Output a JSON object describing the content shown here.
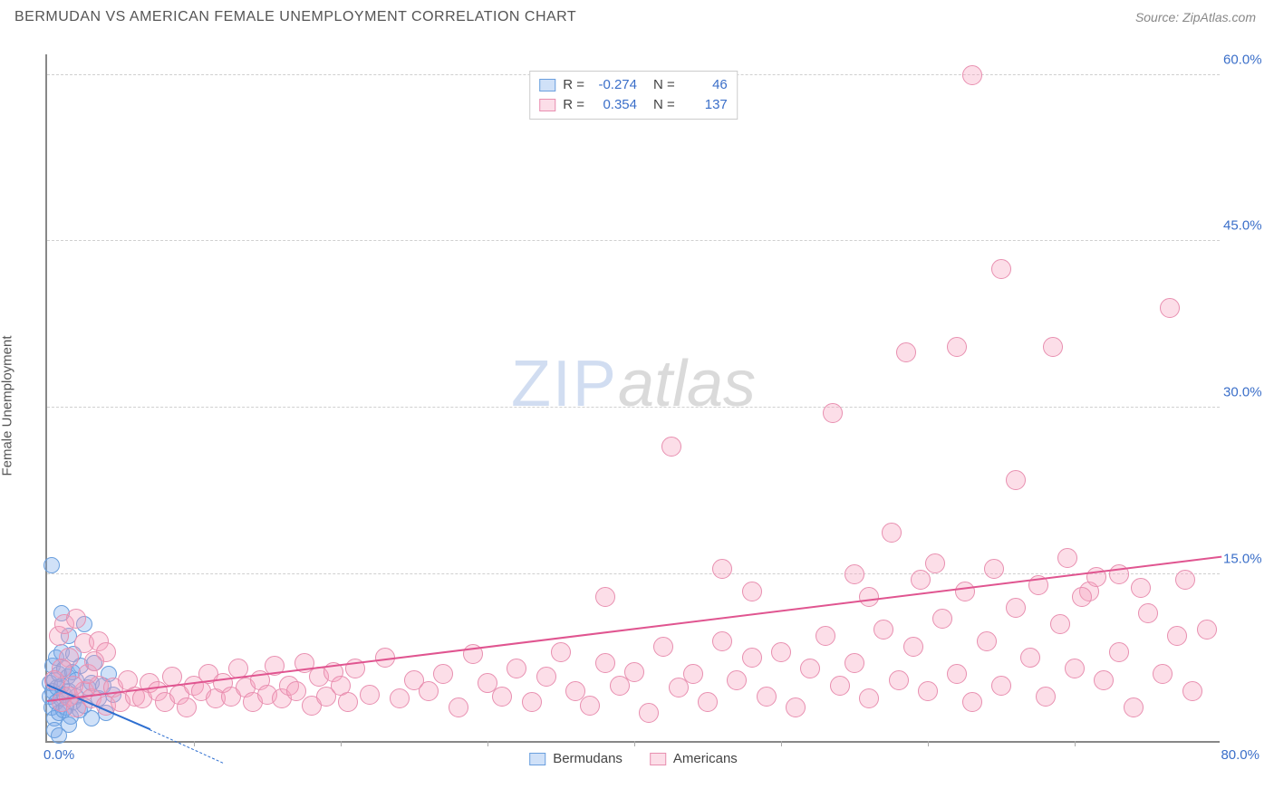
{
  "header": {
    "title": "BERMUDAN VS AMERICAN FEMALE UNEMPLOYMENT CORRELATION CHART",
    "source": "Source: ZipAtlas.com"
  },
  "chart": {
    "type": "scatter",
    "ylabel": "Female Unemployment",
    "watermark_a": "ZIP",
    "watermark_b": "atlas",
    "background_color": "#ffffff",
    "grid_color": "#d0d0d0",
    "axis_color": "#888888",
    "tick_color": "#3b6fc9",
    "xlim": [
      0,
      80
    ],
    "ylim": [
      0,
      62
    ],
    "yticks": [
      15,
      30,
      45,
      60
    ],
    "ytick_labels": [
      "15.0%",
      "30.0%",
      "45.0%",
      "60.0%"
    ],
    "xtick_left": "0.0%",
    "xtick_right": "80.0%",
    "xtick_marks": [
      10,
      20,
      30,
      40,
      50,
      60,
      70
    ],
    "series": [
      {
        "name": "Bermudans",
        "fill": "rgba(120,170,235,0.35)",
        "stroke": "#6a9fde",
        "trend_color": "#2e6fd0",
        "trend": {
          "x1": 0,
          "y1": 5.0,
          "x2": 7,
          "y2": 1.0,
          "width": 2,
          "dashed": false
        },
        "trend_ext": {
          "x1": 7,
          "y1": 1.0,
          "x2": 12,
          "y2": -2.0,
          "width": 1,
          "dashed": true
        },
        "marker_r": 9,
        "points": [
          [
            0.2,
            4.0
          ],
          [
            0.2,
            5.2
          ],
          [
            0.3,
            3.0
          ],
          [
            0.4,
            6.8
          ],
          [
            0.4,
            4.5
          ],
          [
            0.5,
            2.0
          ],
          [
            0.5,
            5.5
          ],
          [
            0.6,
            3.5
          ],
          [
            0.6,
            7.5
          ],
          [
            0.7,
            4.8
          ],
          [
            0.8,
            2.5
          ],
          [
            0.8,
            6.0
          ],
          [
            0.9,
            3.8
          ],
          [
            1.0,
            5.0
          ],
          [
            1.0,
            8.0
          ],
          [
            1.1,
            2.8
          ],
          [
            1.2,
            4.2
          ],
          [
            1.2,
            6.5
          ],
          [
            1.3,
            3.0
          ],
          [
            1.4,
            5.8
          ],
          [
            1.5,
            4.5
          ],
          [
            1.5,
            9.5
          ],
          [
            1.6,
            2.2
          ],
          [
            1.7,
            6.2
          ],
          [
            1.8,
            3.5
          ],
          [
            1.8,
            7.8
          ],
          [
            2.0,
            4.0
          ],
          [
            2.0,
            5.5
          ],
          [
            2.2,
            2.8
          ],
          [
            2.3,
            6.8
          ],
          [
            2.5,
            3.2
          ],
          [
            2.5,
            10.5
          ],
          [
            2.8,
            4.8
          ],
          [
            3.0,
            2.0
          ],
          [
            3.0,
            5.2
          ],
          [
            3.2,
            7.0
          ],
          [
            3.5,
            3.8
          ],
          [
            3.8,
            5.0
          ],
          [
            4.0,
            2.5
          ],
          [
            4.2,
            6.0
          ],
          [
            4.5,
            4.2
          ],
          [
            0.3,
            15.8
          ],
          [
            1.0,
            11.5
          ],
          [
            0.5,
            1.0
          ],
          [
            0.8,
            0.5
          ],
          [
            1.5,
            1.5
          ]
        ]
      },
      {
        "name": "Americans",
        "fill": "rgba(245,160,190,0.35)",
        "stroke": "#e88fb0",
        "trend_color": "#e05590",
        "trend": {
          "x1": 0,
          "y1": 3.5,
          "x2": 80,
          "y2": 16.5,
          "width": 2,
          "dashed": false
        },
        "marker_r": 11,
        "points": [
          [
            1.0,
            3.5
          ],
          [
            1.5,
            4.0
          ],
          [
            2.0,
            3.0
          ],
          [
            2.5,
            4.5
          ],
          [
            3.0,
            3.8
          ],
          [
            3.5,
            5.0
          ],
          [
            4.0,
            3.2
          ],
          [
            4.5,
            4.8
          ],
          [
            5.0,
            3.5
          ],
          [
            5.5,
            5.5
          ],
          [
            6.0,
            4.0
          ],
          [
            6.5,
            3.8
          ],
          [
            7.0,
            5.2
          ],
          [
            7.5,
            4.5
          ],
          [
            8.0,
            3.5
          ],
          [
            8.5,
            5.8
          ],
          [
            9.0,
            4.2
          ],
          [
            9.5,
            3.0
          ],
          [
            10.0,
            5.0
          ],
          [
            10.5,
            4.5
          ],
          [
            11.0,
            6.0
          ],
          [
            11.5,
            3.8
          ],
          [
            12.0,
            5.2
          ],
          [
            12.5,
            4.0
          ],
          [
            13.0,
            6.5
          ],
          [
            13.5,
            4.8
          ],
          [
            14.0,
            3.5
          ],
          [
            14.5,
            5.5
          ],
          [
            15.0,
            4.2
          ],
          [
            15.5,
            6.8
          ],
          [
            16.0,
            3.8
          ],
          [
            16.5,
            5.0
          ],
          [
            17.0,
            4.5
          ],
          [
            17.5,
            7.0
          ],
          [
            18.0,
            3.2
          ],
          [
            18.5,
            5.8
          ],
          [
            19.0,
            4.0
          ],
          [
            19.5,
            6.2
          ],
          [
            20.0,
            5.0
          ],
          [
            20.5,
            3.5
          ],
          [
            21.0,
            6.5
          ],
          [
            22.0,
            4.2
          ],
          [
            23.0,
            7.5
          ],
          [
            24.0,
            3.8
          ],
          [
            25.0,
            5.5
          ],
          [
            26.0,
            4.5
          ],
          [
            27.0,
            6.0
          ],
          [
            28.0,
            3.0
          ],
          [
            29.0,
            7.8
          ],
          [
            30.0,
            5.2
          ],
          [
            31.0,
            4.0
          ],
          [
            32.0,
            6.5
          ],
          [
            33.0,
            3.5
          ],
          [
            34.0,
            5.8
          ],
          [
            35.0,
            8.0
          ],
          [
            36.0,
            4.5
          ],
          [
            37.0,
            3.2
          ],
          [
            38.0,
            7.0
          ],
          [
            39.0,
            5.0
          ],
          [
            40.0,
            6.2
          ],
          [
            41.0,
            2.5
          ],
          [
            42.0,
            8.5
          ],
          [
            43.0,
            4.8
          ],
          [
            44.0,
            6.0
          ],
          [
            45.0,
            3.5
          ],
          [
            46.0,
            9.0
          ],
          [
            47.0,
            5.5
          ],
          [
            48.0,
            7.5
          ],
          [
            49.0,
            4.0
          ],
          [
            50.0,
            8.0
          ],
          [
            51.0,
            3.0
          ],
          [
            52.0,
            6.5
          ],
          [
            53.0,
            9.5
          ],
          [
            54.0,
            5.0
          ],
          [
            55.0,
            7.0
          ],
          [
            56.0,
            3.8
          ],
          [
            57.0,
            10.0
          ],
          [
            58.0,
            5.5
          ],
          [
            59.0,
            8.5
          ],
          [
            60.0,
            4.5
          ],
          [
            61.0,
            11.0
          ],
          [
            62.0,
            6.0
          ],
          [
            63.0,
            3.5
          ],
          [
            64.0,
            9.0
          ],
          [
            65.0,
            5.0
          ],
          [
            66.0,
            12.0
          ],
          [
            67.0,
            7.5
          ],
          [
            68.0,
            4.0
          ],
          [
            69.0,
            10.5
          ],
          [
            70.0,
            6.5
          ],
          [
            71.0,
            13.5
          ],
          [
            72.0,
            5.5
          ],
          [
            73.0,
            8.0
          ],
          [
            74.0,
            3.0
          ],
          [
            75.0,
            11.5
          ],
          [
            76.0,
            6.0
          ],
          [
            77.0,
            9.5
          ],
          [
            78.0,
            4.5
          ],
          [
            79.0,
            10.0
          ],
          [
            38.0,
            13.0
          ],
          [
            42.5,
            26.5
          ],
          [
            46.0,
            15.5
          ],
          [
            48.0,
            13.5
          ],
          [
            53.5,
            29.5
          ],
          [
            55.0,
            15.0
          ],
          [
            56.0,
            13.0
          ],
          [
            57.5,
            18.8
          ],
          [
            58.5,
            35.0
          ],
          [
            59.5,
            14.5
          ],
          [
            60.5,
            16.0
          ],
          [
            62.0,
            35.5
          ],
          [
            62.5,
            13.5
          ],
          [
            63.0,
            60.0
          ],
          [
            64.5,
            15.5
          ],
          [
            65.0,
            42.5
          ],
          [
            66.0,
            23.5
          ],
          [
            67.5,
            14.0
          ],
          [
            68.5,
            35.5
          ],
          [
            69.5,
            16.5
          ],
          [
            70.5,
            13.0
          ],
          [
            71.5,
            14.8
          ],
          [
            73.0,
            15.0
          ],
          [
            74.5,
            13.8
          ],
          [
            76.5,
            39.0
          ],
          [
            77.5,
            14.5
          ],
          [
            1.5,
            7.5
          ],
          [
            2.5,
            8.8
          ],
          [
            0.8,
            9.5
          ],
          [
            1.2,
            10.5
          ],
          [
            3.5,
            9.0
          ],
          [
            2.0,
            11.0
          ],
          [
            1.0,
            6.5
          ],
          [
            4.0,
            8.0
          ],
          [
            2.8,
            6.0
          ],
          [
            1.8,
            5.0
          ],
          [
            3.2,
            7.2
          ],
          [
            0.5,
            5.5
          ]
        ]
      }
    ],
    "stats": [
      {
        "r_label": "R =",
        "r": "-0.274",
        "n_label": "N =",
        "n": "46",
        "swatch_fill": "rgba(120,170,235,0.35)",
        "swatch_stroke": "#6a9fde"
      },
      {
        "r_label": "R =",
        "r": "0.354",
        "n_label": "N =",
        "n": "137",
        "swatch_fill": "rgba(245,160,190,0.35)",
        "swatch_stroke": "#e88fb0"
      }
    ],
    "legend": [
      {
        "label": "Bermudans",
        "swatch_fill": "rgba(120,170,235,0.35)",
        "swatch_stroke": "#6a9fde"
      },
      {
        "label": "Americans",
        "swatch_fill": "rgba(245,160,190,0.35)",
        "swatch_stroke": "#e88fb0"
      }
    ]
  }
}
